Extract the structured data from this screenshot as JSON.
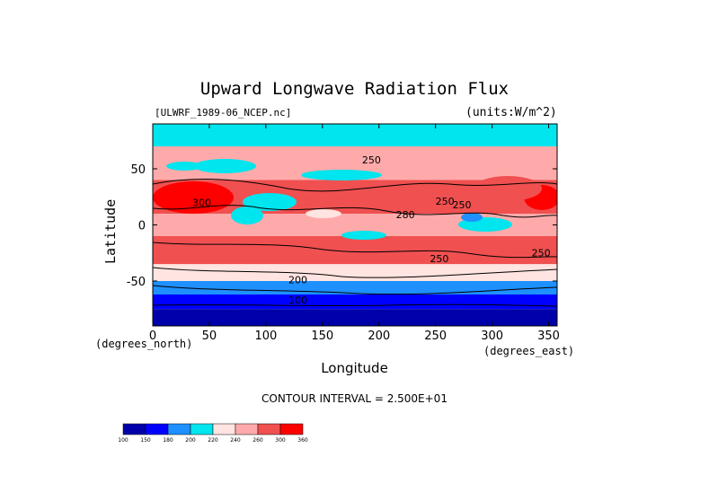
{
  "chart_data": {
    "type": "heatmap",
    "title": "Upward Longwave Radiation Flux",
    "source_label": "[ULWRF_1989-06_NCEP.nc]",
    "units_label": "(units:W/m^2)",
    "xlabel": "Longitude",
    "ylabel": "Latitude",
    "x_units": "(degrees_east)",
    "y_units": "(degrees_north)",
    "xlim": [
      0,
      357.5
    ],
    "ylim": [
      -90,
      90
    ],
    "x_ticks": [
      0,
      50,
      100,
      150,
      200,
      250,
      300,
      350
    ],
    "y_ticks": [
      50,
      0,
      -50
    ],
    "contour_interval_text": "CONTOUR INTERVAL = 2.500E+01",
    "contour_labels": [
      "250",
      "300",
      "250",
      "280",
      "250",
      "200",
      "100",
      "250",
      "250"
    ],
    "colorbar": {
      "levels": [
        "100",
        "150",
        "180",
        "200",
        "220",
        "240",
        "260",
        "300",
        "360"
      ],
      "colors": [
        "#0000aa",
        "#0000ff",
        "#1e90ff",
        "#00e5ee",
        "#ffe4e1",
        "#ffaaaa",
        "#f05050",
        "#ff0000"
      ]
    },
    "latitude_bands": [
      {
        "lat_range": [
          70,
          90
        ],
        "value": "200-220"
      },
      {
        "lat_range": [
          40,
          70
        ],
        "value": "240-260"
      },
      {
        "lat_range": [
          10,
          40
        ],
        "value": "260-300"
      },
      {
        "lat_range": [
          -10,
          10
        ],
        "value": "220-280"
      },
      {
        "lat_range": [
          -35,
          -10
        ],
        "value": "260-300"
      },
      {
        "lat_range": [
          -50,
          -35
        ],
        "value": "220-240"
      },
      {
        "lat_range": [
          -62,
          -50
        ],
        "value": "180-200"
      },
      {
        "lat_range": [
          -75,
          -62
        ],
        "value": "150-180"
      },
      {
        "lat_range": [
          -90,
          -75
        ],
        "value": "100-150"
      }
    ]
  }
}
